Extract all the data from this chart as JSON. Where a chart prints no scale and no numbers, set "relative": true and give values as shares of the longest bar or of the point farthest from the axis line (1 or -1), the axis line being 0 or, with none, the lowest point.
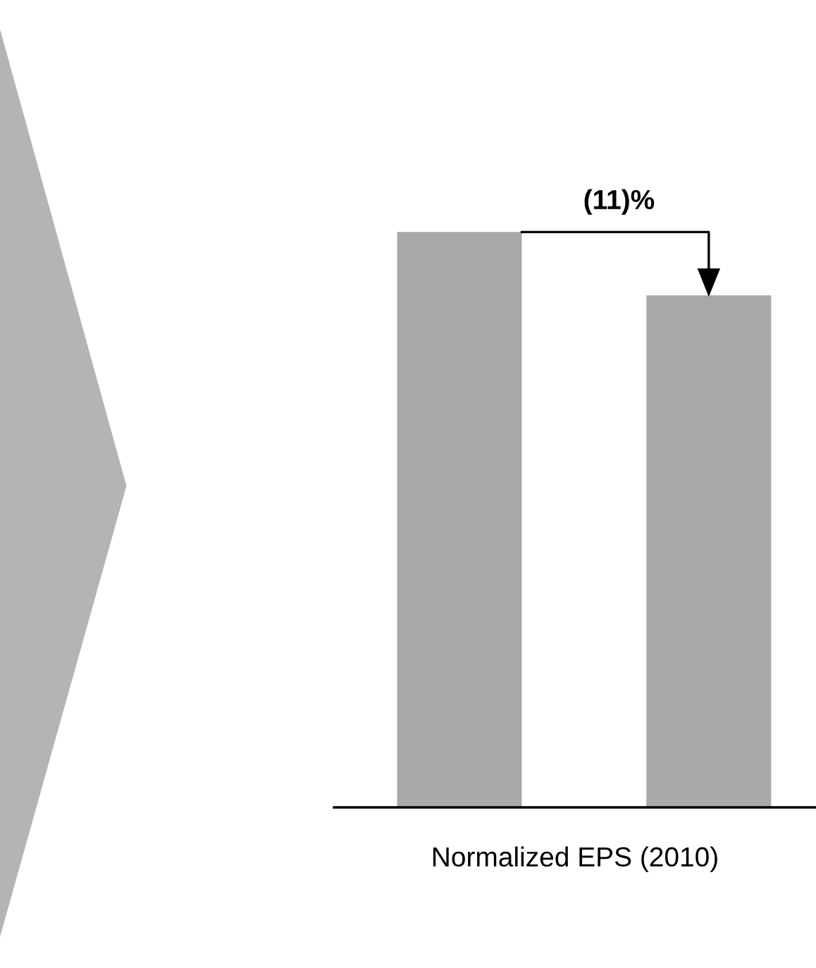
{
  "chart_data": {
    "type": "bar",
    "relative": true,
    "categories": [
      null,
      null
    ],
    "values": [
      1,
      0.89
    ],
    "color": "#a8a8a8",
    "xlabel": "Normalized EPS (2010)",
    "annotations": [
      "(11)%"
    ],
    "tick_labels": false,
    "grid": false
  }
}
